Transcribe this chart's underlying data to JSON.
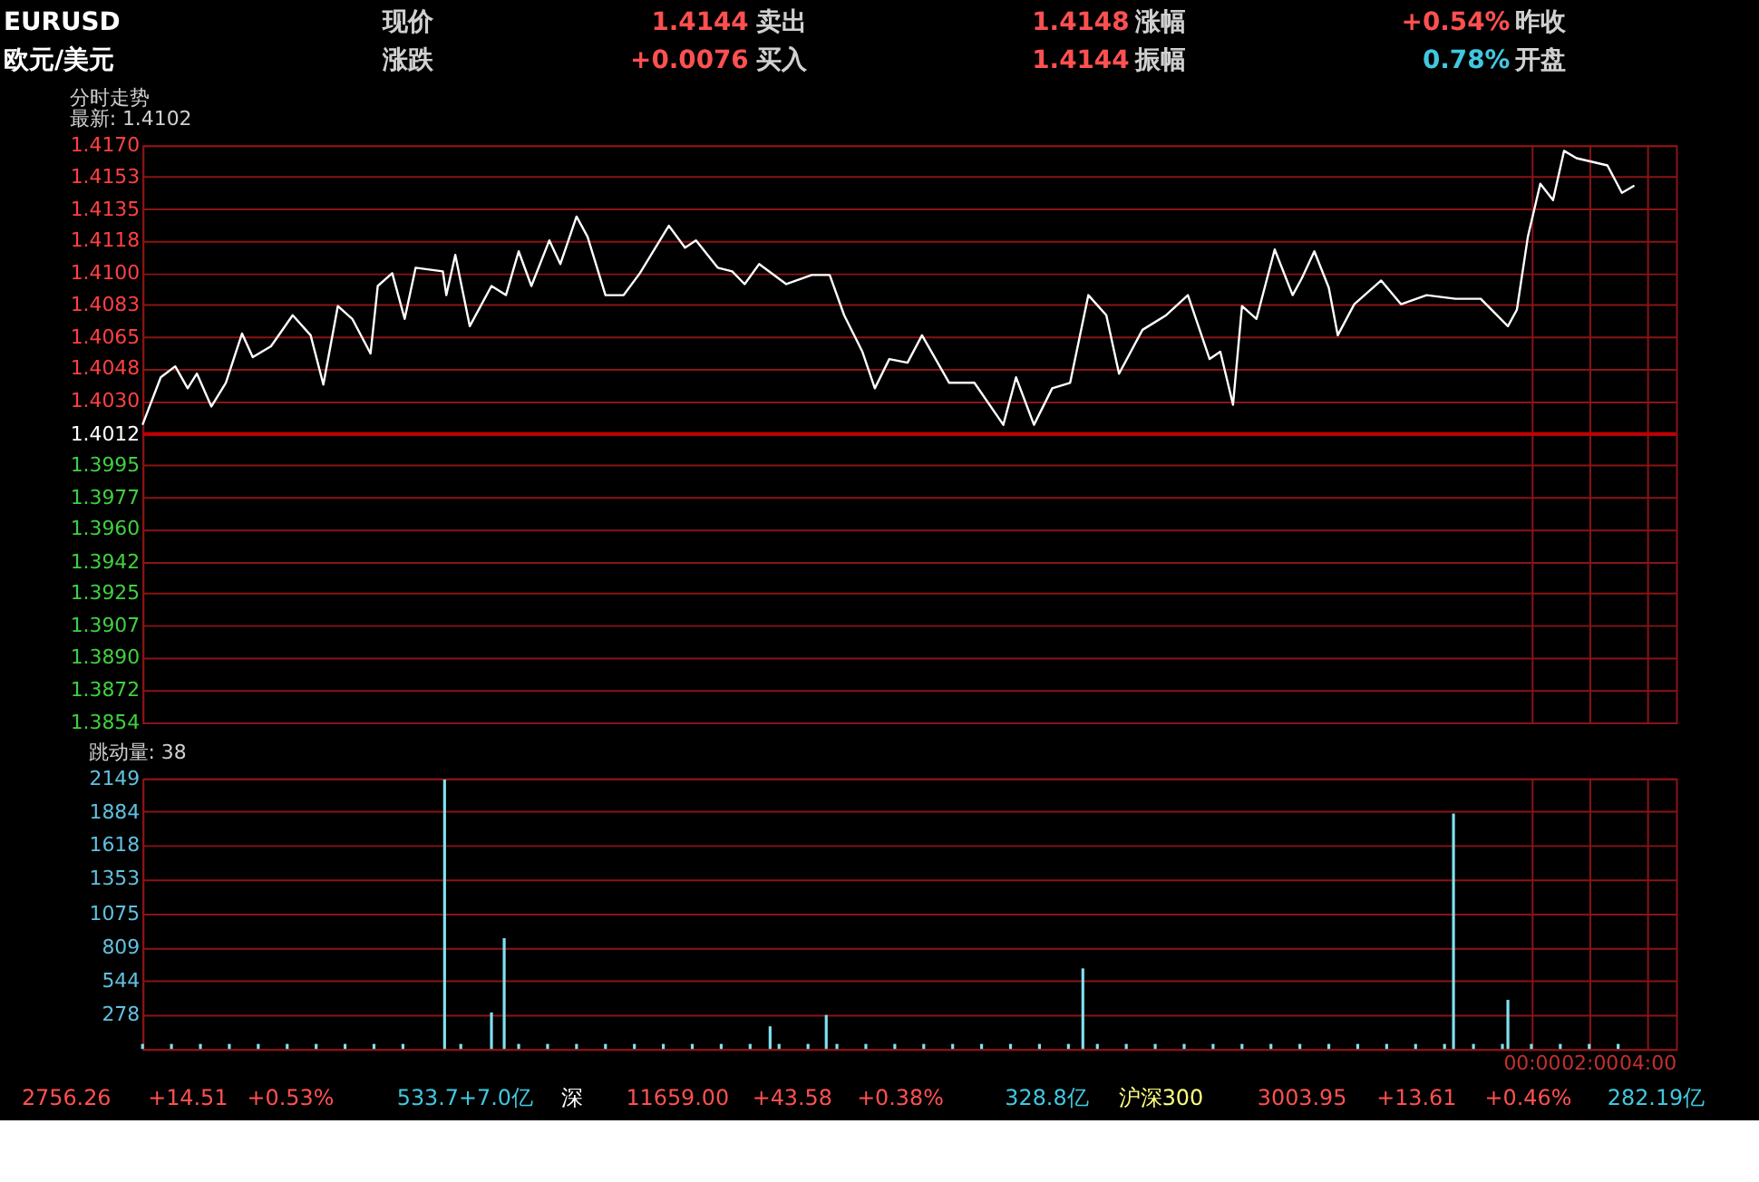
{
  "chart_data": [
    {
      "type": "line",
      "title": "分时走势",
      "subtitle": "最新: 1.4102",
      "annotations": [
        "EURUSD",
        "现价",
        "1.4144",
        "卖出",
        "1.4148",
        "涨幅",
        "+0.54%",
        "昨收",
        "欧元/美元",
        "涨跌",
        "+0.0076",
        "买入",
        "1.4144",
        "振幅",
        "0.78%",
        "开盘"
      ],
      "x": [
        -48,
        -47.37,
        -46.87,
        -46.44,
        -46.12,
        -45.62,
        -45.12,
        -44.56,
        -44.19,
        -43.56,
        -42.81,
        -42.19,
        -41.75,
        -41.25,
        -40.75,
        -40.12,
        -39.87,
        -39.37,
        -38.94,
        -38.56,
        -37.62,
        -37.5,
        -37.19,
        -36.69,
        -35.94,
        -35.44,
        -35,
        -34.56,
        -33.94,
        -33.56,
        -33,
        -32.62,
        -32,
        -31.37,
        -30.81,
        -29.81,
        -29.25,
        -28.87,
        -28.12,
        -27.62,
        -27.19,
        -26.69,
        -25.75,
        -24.87,
        -24.25,
        -23.75,
        -23.12,
        -22.69,
        -22.19,
        -21.56,
        -21.06,
        -20.12,
        -19.25,
        -18.25,
        -17.81,
        -17.19,
        -16.56,
        -15.94,
        -15.31,
        -14.69,
        -14.25,
        -13.44,
        -12.62,
        -11.87,
        -11.12,
        -10.75,
        -10.31,
        -10,
        -9.5,
        -8.87,
        -8.25,
        -7.94,
        -7.5,
        -7,
        -6.69,
        -6.12,
        -5.19,
        -4.5,
        -3.62,
        -2.62,
        -1.75,
        -0.81,
        -0.5,
        -0.12,
        0.31,
        0.75,
        1.13,
        1.56,
        2.63,
        3.13,
        3.56
      ],
      "series": [
        {
          "color": "#ffffff",
          "values": [
            1.4017,
            1.4043,
            1.4049,
            1.4037,
            1.4045,
            1.4027,
            1.404,
            1.4067,
            1.4054,
            1.406,
            1.4077,
            1.4066,
            1.4039,
            1.4082,
            1.4075,
            1.4056,
            1.4093,
            1.41,
            1.4075,
            1.4103,
            1.4101,
            1.4088,
            1.411,
            1.4071,
            1.4093,
            1.4088,
            1.4112,
            1.4093,
            1.4118,
            1.4105,
            1.4131,
            1.412,
            1.4088,
            1.4088,
            1.41,
            1.4126,
            1.4114,
            1.4118,
            1.4103,
            1.4101,
            1.4094,
            1.4105,
            1.4094,
            1.4099,
            1.4099,
            1.4077,
            1.4057,
            1.4037,
            1.4053,
            1.4051,
            1.4066,
            1.404,
            1.404,
            1.4017,
            1.4043,
            1.4017,
            1.4037,
            1.404,
            1.4088,
            1.4077,
            1.4045,
            1.4069,
            1.4077,
            1.4088,
            1.4053,
            1.4057,
            1.4028,
            1.4082,
            1.4075,
            1.4113,
            1.4088,
            1.4097,
            1.4112,
            1.4092,
            1.4066,
            1.4083,
            1.4096,
            1.4083,
            1.4088,
            1.4086,
            1.4086,
            1.4071,
            1.408,
            1.412,
            1.4149,
            1.414,
            1.4167,
            1.4163,
            1.4159,
            1.4144,
            1.4148
          ]
        }
      ],
      "xlim": [
        -48,
        5
      ],
      "xticks": [
        {
          "value": 0,
          "label": null
        },
        {
          "value": 2,
          "label": null
        },
        {
          "value": 4,
          "label": null
        }
      ],
      "ylim": [
        1.3854,
        1.417
      ],
      "yticks": [
        {
          "value": 1.417,
          "label": "1.4170"
        },
        1.4153,
        1.4135,
        1.4118,
        {
          "value": 1.41,
          "label": "1.4100"
        },
        1.4083,
        1.4065,
        1.4048,
        {
          "value": 1.403,
          "label": "1.4030"
        },
        1.4012,
        1.3995,
        1.3977,
        {
          "value": 1.396,
          "label": "1.3960"
        },
        1.3942,
        1.3925,
        1.3907,
        {
          "value": 1.389,
          "label": "1.3890"
        },
        1.3872,
        1.3854
      ],
      "ref_lines": [
        {
          "axis": "y",
          "value": 1.4012,
          "color": "#c00000"
        }
      ],
      "grid": true,
      "marker": "none",
      "line_style": "solid",
      "tick_labels": "y"
    },
    {
      "type": "bar",
      "title": "跳动量: 38",
      "annotations": [
        "2756.26",
        "+14.51",
        "+0.53%",
        "533.7+7.0亿",
        "深",
        "11659.00",
        "+43.58",
        "+0.38%",
        "328.8亿",
        "沪深300",
        "3003.95",
        "+13.61",
        "+0.46%",
        "282.19亿"
      ],
      "x": [
        -48,
        -47,
        -46,
        -45,
        -44,
        -43,
        -42,
        -41,
        -40,
        -39,
        -37.56,
        -37,
        -36,
        -35.94,
        -35.5,
        -35,
        -34,
        -33,
        -32,
        -31,
        -30,
        -29,
        -28,
        -27,
        -26.31,
        -26,
        -25,
        -24.37,
        -24,
        -23,
        -22,
        -21,
        -20,
        -19,
        -18,
        -17,
        -16,
        -15.5,
        -15,
        -14,
        -13,
        -12,
        -11,
        -10,
        -9,
        -8,
        -7,
        -6,
        -5,
        -4,
        -3,
        -2.69,
        -2,
        -1,
        -0.81,
        0,
        1,
        2,
        3
      ],
      "series": [
        {
          "color": "#80e0f0",
          "values": [
            40,
            40,
            40,
            40,
            40,
            40,
            40,
            40,
            40,
            40,
            2140,
            40,
            null,
            290,
            880,
            40,
            40,
            40,
            40,
            40,
            40,
            40,
            40,
            40,
            180,
            40,
            40,
            270,
            40,
            40,
            40,
            40,
            40,
            40,
            40,
            40,
            40,
            640,
            40,
            40,
            40,
            40,
            40,
            40,
            40,
            40,
            40,
            40,
            40,
            40,
            40,
            1870,
            40,
            40,
            390,
            40,
            40,
            40,
            40
          ]
        }
      ],
      "xlim": [
        -48,
        5
      ],
      "xticks": [
        {
          "value": 0,
          "label": "00:00"
        },
        {
          "value": 2,
          "label": "02:00"
        },
        {
          "value": 4,
          "label": "04:00"
        }
      ],
      "ylim": [
        0,
        2149
      ],
      "yticks": [
        278,
        544,
        809,
        1075,
        1353,
        1618,
        1884,
        2149
      ],
      "grid": true
    }
  ]
}
